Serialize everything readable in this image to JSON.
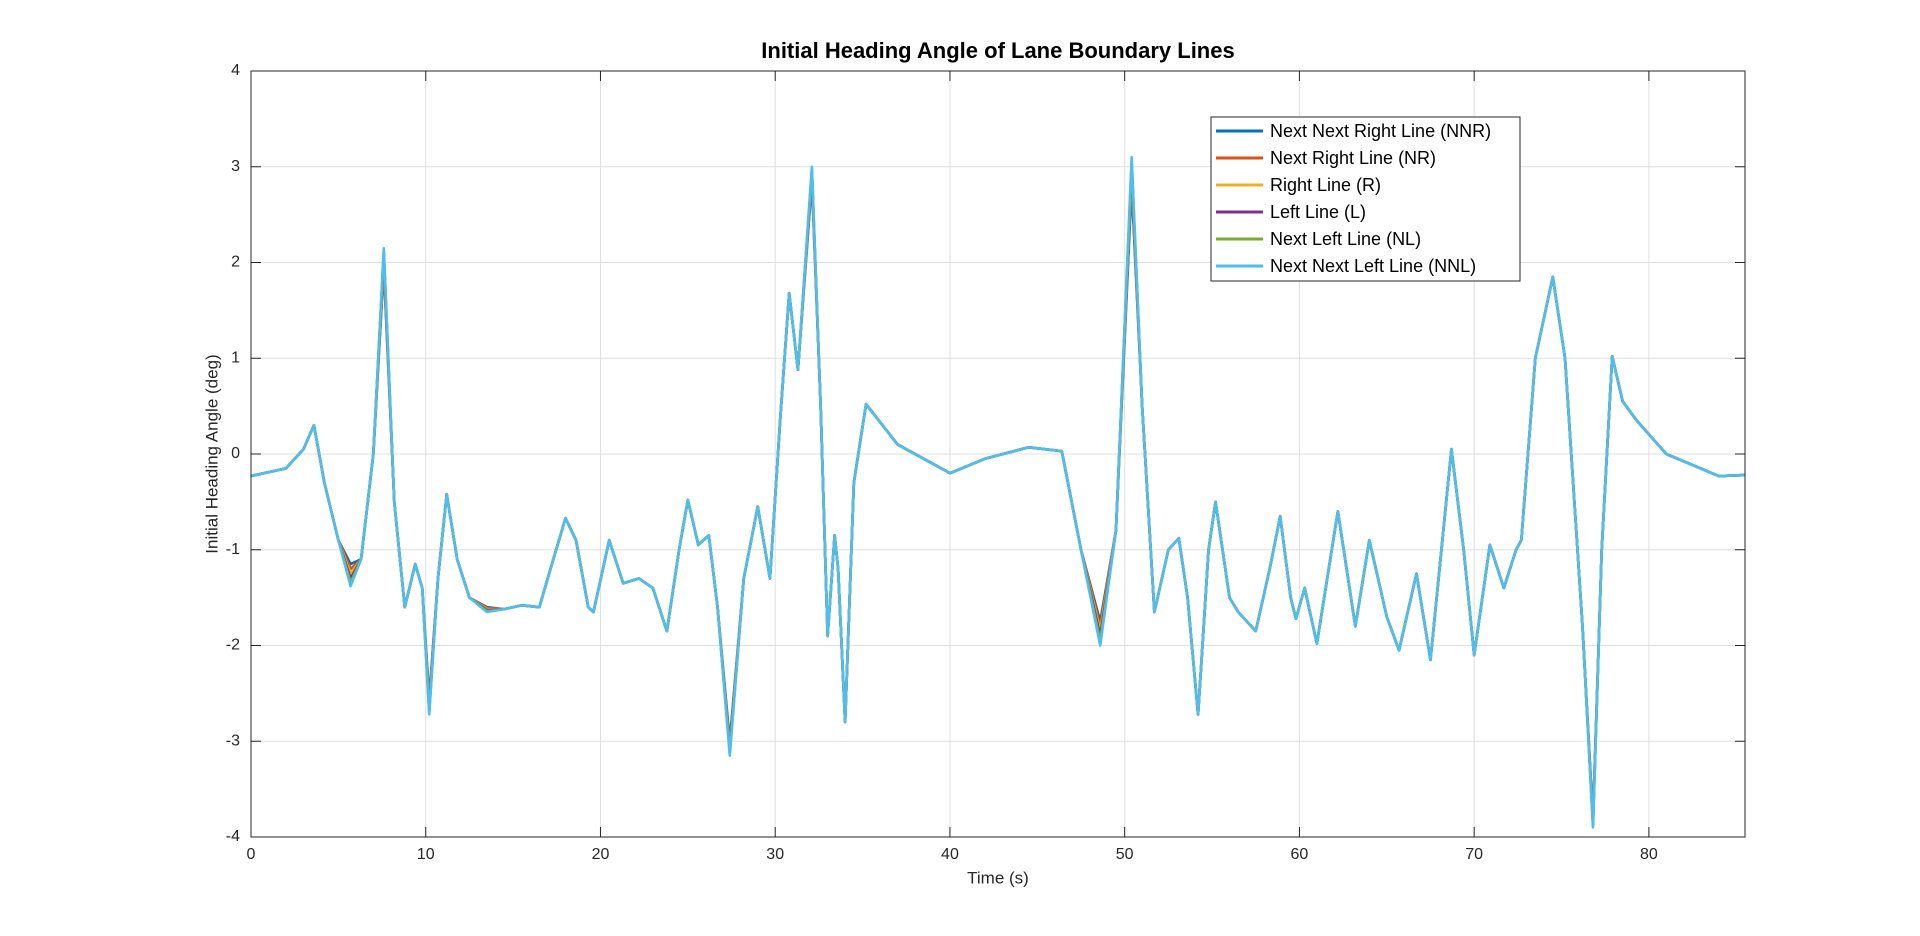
{
  "chart_data": {
    "type": "line",
    "title": "Initial Heading Angle of Lane Boundary Lines",
    "xlabel": "Time (s)",
    "ylabel": "Initial Heading Angle (deg)",
    "x": [
      0,
      2,
      3,
      3.6,
      4.2,
      5,
      5.7,
      6.3,
      7,
      7.6,
      8.2,
      8.8,
      9.4,
      9.8,
      10.2,
      10.7,
      11.2,
      11.8,
      12.5,
      13.5,
      14.5,
      15.5,
      16.5,
      17.3,
      18,
      18.6,
      19.3,
      19.6,
      20.5,
      21.3,
      22.2,
      23,
      23.8,
      24.5,
      25,
      25.6,
      26.2,
      26.7,
      27.4,
      28.2,
      29,
      29.7,
      30.3,
      30.8,
      31.3,
      32.1,
      32.6,
      33,
      33.4,
      33.6,
      34,
      34.5,
      35.2,
      37,
      40,
      42,
      44.5,
      46.4,
      47.5,
      48.6,
      49.5,
      50.4,
      51,
      51.7,
      52.5,
      53.1,
      53.6,
      54.2,
      54.8,
      55.2,
      56,
      56.5,
      57.5,
      58.3,
      58.9,
      59.5,
      59.8,
      60.3,
      61,
      62.2,
      63.2,
      64,
      65,
      65.7,
      66.7,
      67.5,
      68.7,
      69.4,
      70,
      70.9,
      71.7,
      72.4,
      72.7,
      73.5,
      74.5,
      75.2,
      76.2,
      76.8,
      77.3,
      77.9,
      78.5,
      79.3,
      81,
      84,
      85.5
    ],
    "series": [
      {
        "name": "Next Next Right Line (NNR)",
        "color": "#0072BD",
        "values": [
          -0.23,
          -0.15,
          0.05,
          0.3,
          -0.3,
          -0.9,
          -1.15,
          -1.1,
          0,
          1.95,
          -0.5,
          -1.6,
          -1.15,
          -1.4,
          -2.55,
          -1.3,
          -0.42,
          -1.1,
          -1.5,
          -1.6,
          -1.62,
          -1.58,
          -1.6,
          -1.1,
          -0.67,
          -0.9,
          -1.6,
          -1.65,
          -0.9,
          -1.35,
          -1.3,
          -1.4,
          -1.85,
          -1.0,
          -0.48,
          -0.95,
          -0.85,
          -1.6,
          -3.0,
          -1.3,
          -0.55,
          -1.3,
          0.4,
          1.68,
          0.88,
          2.85,
          0.5,
          -1.9,
          -0.85,
          -1.2,
          -2.8,
          -0.3,
          0.52,
          0.1,
          -0.2,
          -0.05,
          0.07,
          0.03,
          -1.0,
          -1.75,
          -0.8,
          2.8,
          0.5,
          -1.65,
          -1.0,
          -0.88,
          -1.5,
          -2.72,
          -1.0,
          -0.5,
          -1.5,
          -1.65,
          -1.85,
          -1.2,
          -0.65,
          -1.5,
          -1.72,
          -1.4,
          -1.98,
          -0.6,
          -1.8,
          -0.9,
          -1.7,
          -2.05,
          -1.25,
          -2.15,
          0.05,
          -1.0,
          -2.1,
          -0.95,
          -1.4,
          -1.0,
          -0.9,
          1.0,
          1.85,
          1.0,
          -1.8,
          -3.8,
          -1.0,
          1.02,
          0.55,
          0.35,
          0,
          -0.23,
          -0.22
        ]
      },
      {
        "name": "Next Right Line (NR)",
        "color": "#D95319",
        "values": [
          -0.23,
          -0.15,
          0.05,
          0.3,
          -0.3,
          -0.9,
          -1.2,
          -1.1,
          0,
          2.0,
          -0.5,
          -1.6,
          -1.15,
          -1.4,
          -2.6,
          -1.3,
          -0.42,
          -1.1,
          -1.5,
          -1.61,
          -1.62,
          -1.58,
          -1.6,
          -1.1,
          -0.67,
          -0.9,
          -1.6,
          -1.65,
          -0.9,
          -1.35,
          -1.3,
          -1.4,
          -1.85,
          -1.0,
          -0.48,
          -0.95,
          -0.85,
          -1.6,
          -3.05,
          -1.3,
          -0.55,
          -1.3,
          0.4,
          1.68,
          0.88,
          2.9,
          0.5,
          -1.9,
          -0.85,
          -1.2,
          -2.8,
          -0.3,
          0.52,
          0.1,
          -0.2,
          -0.05,
          0.07,
          0.03,
          -1.0,
          -1.8,
          -0.8,
          2.9,
          0.5,
          -1.65,
          -1.0,
          -0.88,
          -1.5,
          -2.72,
          -1.0,
          -0.5,
          -1.5,
          -1.65,
          -1.85,
          -1.2,
          -0.65,
          -1.5,
          -1.72,
          -1.4,
          -1.98,
          -0.6,
          -1.8,
          -0.9,
          -1.7,
          -2.05,
          -1.25,
          -2.15,
          0.05,
          -1.0,
          -2.1,
          -0.95,
          -1.4,
          -1.0,
          -0.9,
          1.0,
          1.85,
          1.0,
          -1.8,
          -3.83,
          -1.0,
          1.02,
          0.55,
          0.35,
          0,
          -0.23,
          -0.22
        ]
      },
      {
        "name": "Right Line (R)",
        "color": "#EDB120",
        "values": [
          -0.23,
          -0.15,
          0.05,
          0.3,
          -0.3,
          -0.9,
          -1.25,
          -1.1,
          0,
          2.05,
          -0.5,
          -1.6,
          -1.15,
          -1.4,
          -2.63,
          -1.3,
          -0.42,
          -1.1,
          -1.5,
          -1.62,
          -1.62,
          -1.58,
          -1.6,
          -1.1,
          -0.67,
          -0.9,
          -1.6,
          -1.65,
          -0.9,
          -1.35,
          -1.3,
          -1.4,
          -1.85,
          -1.0,
          -0.48,
          -0.95,
          -0.85,
          -1.6,
          -3.08,
          -1.3,
          -0.55,
          -1.3,
          0.4,
          1.68,
          0.88,
          2.93,
          0.5,
          -1.9,
          -0.85,
          -1.2,
          -2.8,
          -0.3,
          0.52,
          0.1,
          -0.2,
          -0.05,
          0.07,
          0.03,
          -1.0,
          -1.85,
          -0.8,
          2.95,
          0.5,
          -1.65,
          -1.0,
          -0.88,
          -1.5,
          -2.72,
          -1.0,
          -0.5,
          -1.5,
          -1.65,
          -1.85,
          -1.2,
          -0.65,
          -1.5,
          -1.72,
          -1.4,
          -1.98,
          -0.6,
          -1.8,
          -0.9,
          -1.7,
          -2.05,
          -1.25,
          -2.15,
          0.05,
          -1.0,
          -2.1,
          -0.95,
          -1.4,
          -1.0,
          -0.9,
          1.0,
          1.85,
          1.0,
          -1.8,
          -3.85,
          -1.0,
          1.02,
          0.55,
          0.35,
          0,
          -0.23,
          -0.22
        ]
      },
      {
        "name": "Left Line (L)",
        "color": "#7E2F8E",
        "values": [
          -0.23,
          -0.15,
          0.05,
          0.3,
          -0.3,
          -0.9,
          -1.3,
          -1.1,
          0,
          2.08,
          -0.5,
          -1.6,
          -1.15,
          -1.4,
          -2.66,
          -1.3,
          -0.42,
          -1.1,
          -1.5,
          -1.63,
          -1.62,
          -1.58,
          -1.6,
          -1.1,
          -0.67,
          -0.9,
          -1.6,
          -1.65,
          -0.9,
          -1.35,
          -1.3,
          -1.4,
          -1.85,
          -1.0,
          -0.48,
          -0.95,
          -0.85,
          -1.6,
          -3.1,
          -1.3,
          -0.55,
          -1.3,
          0.4,
          1.68,
          0.88,
          2.95,
          0.5,
          -1.9,
          -0.85,
          -1.2,
          -2.8,
          -0.3,
          0.52,
          0.1,
          -0.2,
          -0.05,
          0.07,
          0.03,
          -1.0,
          -1.9,
          -0.8,
          3.0,
          0.5,
          -1.65,
          -1.0,
          -0.88,
          -1.5,
          -2.72,
          -1.0,
          -0.5,
          -1.5,
          -1.65,
          -1.85,
          -1.2,
          -0.65,
          -1.5,
          -1.72,
          -1.4,
          -1.98,
          -0.6,
          -1.8,
          -0.9,
          -1.7,
          -2.05,
          -1.25,
          -2.15,
          0.05,
          -1.0,
          -2.1,
          -0.95,
          -1.4,
          -1.0,
          -0.9,
          1.0,
          1.85,
          1.0,
          -1.8,
          -3.87,
          -1.0,
          1.02,
          0.55,
          0.35,
          0,
          -0.23,
          -0.22
        ]
      },
      {
        "name": "Next Left Line (NL)",
        "color": "#77AC30",
        "values": [
          -0.23,
          -0.15,
          0.05,
          0.3,
          -0.3,
          -0.9,
          -1.34,
          -1.1,
          0,
          2.12,
          -0.5,
          -1.6,
          -1.15,
          -1.4,
          -2.7,
          -1.3,
          -0.42,
          -1.1,
          -1.5,
          -1.64,
          -1.62,
          -1.58,
          -1.6,
          -1.1,
          -0.67,
          -0.9,
          -1.6,
          -1.65,
          -0.9,
          -1.35,
          -1.3,
          -1.4,
          -1.85,
          -1.0,
          -0.48,
          -0.95,
          -0.85,
          -1.6,
          -3.12,
          -1.3,
          -0.55,
          -1.3,
          0.4,
          1.68,
          0.88,
          2.98,
          0.5,
          -1.9,
          -0.85,
          -1.2,
          -2.8,
          -0.3,
          0.52,
          0.1,
          -0.2,
          -0.05,
          0.07,
          0.03,
          -1.0,
          -1.95,
          -0.8,
          3.05,
          0.5,
          -1.65,
          -1.0,
          -0.88,
          -1.5,
          -2.72,
          -1.0,
          -0.5,
          -1.5,
          -1.65,
          -1.85,
          -1.2,
          -0.65,
          -1.5,
          -1.72,
          -1.4,
          -1.98,
          -0.6,
          -1.8,
          -0.9,
          -1.7,
          -2.05,
          -1.25,
          -2.15,
          0.05,
          -1.0,
          -2.1,
          -0.95,
          -1.4,
          -1.0,
          -0.9,
          1.0,
          1.85,
          1.0,
          -1.8,
          -3.88,
          -1.0,
          1.02,
          0.55,
          0.35,
          0,
          -0.23,
          -0.22
        ]
      },
      {
        "name": "Next Next Left Line (NNL)",
        "color": "#4DBEEE",
        "values": [
          -0.23,
          -0.15,
          0.05,
          0.3,
          -0.3,
          -0.9,
          -1.38,
          -1.1,
          0,
          2.15,
          -0.5,
          -1.6,
          -1.15,
          -1.4,
          -2.72,
          -1.3,
          -0.42,
          -1.1,
          -1.5,
          -1.65,
          -1.62,
          -1.58,
          -1.6,
          -1.1,
          -0.67,
          -0.9,
          -1.6,
          -1.65,
          -0.9,
          -1.35,
          -1.3,
          -1.4,
          -1.85,
          -1.0,
          -0.48,
          -0.95,
          -0.85,
          -1.6,
          -3.15,
          -1.3,
          -0.55,
          -1.3,
          0.4,
          1.68,
          0.88,
          3.0,
          0.5,
          -1.9,
          -0.85,
          -1.2,
          -2.8,
          -0.3,
          0.52,
          0.1,
          -0.2,
          -0.05,
          0.07,
          0.03,
          -1.0,
          -2.0,
          -0.8,
          3.1,
          0.5,
          -1.65,
          -1.0,
          -0.88,
          -1.5,
          -2.72,
          -1.0,
          -0.5,
          -1.5,
          -1.65,
          -1.85,
          -1.2,
          -0.65,
          -1.5,
          -1.72,
          -1.4,
          -1.98,
          -0.6,
          -1.8,
          -0.9,
          -1.7,
          -2.05,
          -1.25,
          -2.15,
          0.05,
          -1.0,
          -2.1,
          -0.95,
          -1.4,
          -1.0,
          -0.9,
          1.0,
          1.85,
          1.0,
          -1.8,
          -3.9,
          -1.0,
          1.02,
          0.55,
          0.35,
          0,
          -0.23,
          -0.22
        ]
      }
    ],
    "xlim": [
      0,
      85.5
    ],
    "xticks": [
      0,
      10,
      20,
      30,
      40,
      50,
      60,
      70,
      80
    ],
    "ylim": [
      -4,
      4
    ],
    "yticks": [
      -4,
      -3,
      -2,
      -1,
      0,
      1,
      2,
      3,
      4
    ],
    "grid": true,
    "legend": "northeast"
  }
}
